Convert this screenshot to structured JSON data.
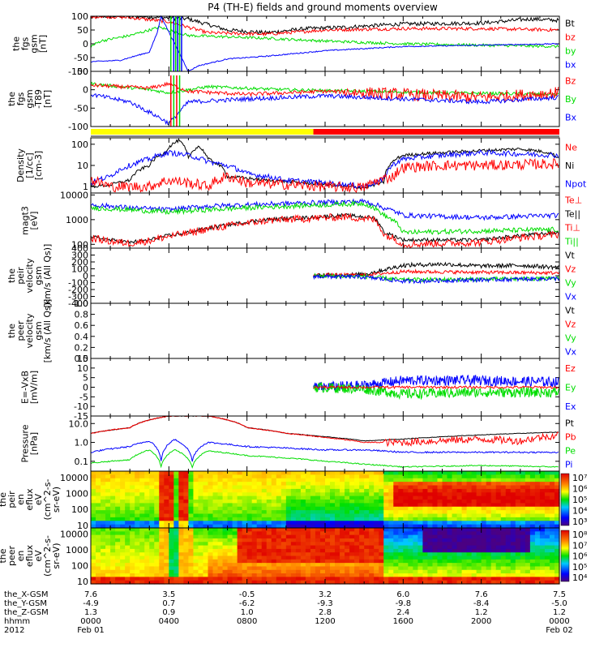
{
  "title": "P4 (TH-E) fields and ground moments overview",
  "colors": {
    "black": "#000000",
    "red": "#ff0000",
    "green": "#00dd00",
    "blue": "#0000ff",
    "yellow": "#ffff00"
  },
  "chart_data": [
    {
      "type": "line",
      "ylabel": [
        "the",
        "fgs",
        "gsm",
        "[nT]"
      ],
      "ylim": [
        -100,
        100
      ],
      "yticks": [
        "100",
        "50",
        "0",
        "-50",
        "-100"
      ],
      "legend": [
        {
          "name": "Bt",
          "color": "black"
        },
        {
          "name": "bz",
          "color": "red"
        },
        {
          "name": "by",
          "color": "green"
        },
        {
          "name": "bx",
          "color": "blue"
        }
      ]
    },
    {
      "type": "line",
      "ylabel": [
        "the",
        "fgs",
        "gsm",
        "-T89",
        "[nT]"
      ],
      "ylim": [
        -120,
        60
      ],
      "yticks": [
        "50",
        "0",
        "-50",
        "-100"
      ],
      "legend": [
        {
          "name": "Bz",
          "color": "red"
        },
        {
          "name": "By",
          "color": "green"
        },
        {
          "name": "Bx",
          "color": "blue"
        }
      ]
    },
    {
      "type": "line",
      "ylabel": [
        "Density",
        "[1/cc]",
        "[cm-3]"
      ],
      "scale": "log",
      "ylim": [
        0.5,
        200
      ],
      "yticks": [
        "100",
        "10",
        "1"
      ],
      "legend": [
        {
          "name": "Ne",
          "color": "red"
        },
        {
          "name": "Ni",
          "color": "black"
        },
        {
          "name": "Npot",
          "color": "blue"
        }
      ]
    },
    {
      "type": "line",
      "ylabel": [
        "magt3",
        "[eV]"
      ],
      "scale": "log",
      "ylim": [
        70,
        12000
      ],
      "yticks": [
        "10000",
        "1000",
        "100"
      ],
      "legend": [
        {
          "name": "Te⊥",
          "color": "red"
        },
        {
          "name": "Te||",
          "color": "black"
        },
        {
          "name": "Ti⊥",
          "color": "red"
        },
        {
          "name": "Ti||",
          "color": "green"
        }
      ]
    },
    {
      "type": "line",
      "ylabel": [
        "the",
        "peir",
        "velocity",
        "gsm",
        "[km/s (All Qs)]"
      ],
      "ylim": [
        -400,
        400
      ],
      "yticks": [
        "400",
        "300",
        "200",
        "100",
        "0",
        "-100",
        "-200",
        "-300",
        "-400"
      ],
      "legend": [
        {
          "name": "Vt",
          "color": "black"
        },
        {
          "name": "Vz",
          "color": "red"
        },
        {
          "name": "Vy",
          "color": "green"
        },
        {
          "name": "Vx",
          "color": "blue"
        }
      ]
    },
    {
      "type": "line",
      "ylabel": [
        "the",
        "peer",
        "velocity",
        "gsm",
        "[km/s (All Qs)]"
      ],
      "ylim": [
        0,
        1
      ],
      "yticks": [
        "1.0",
        "0.8",
        "0.6",
        "0.4",
        "0.2",
        "0.0"
      ],
      "legend": [
        {
          "name": "Vt",
          "color": "black"
        },
        {
          "name": "Vz",
          "color": "red"
        },
        {
          "name": "Vy",
          "color": "green"
        },
        {
          "name": "Vx",
          "color": "blue"
        }
      ]
    },
    {
      "type": "line",
      "ylabel": [
        "E=-VxB",
        "[mV/m]"
      ],
      "ylim": [
        -17,
        17
      ],
      "yticks": [
        "15",
        "10",
        "5",
        "0",
        "-5",
        "-10",
        "-15"
      ],
      "legend": [
        {
          "name": "Ez",
          "color": "red"
        },
        {
          "name": "Ey",
          "color": "green"
        },
        {
          "name": "Ex",
          "color": "blue"
        }
      ]
    },
    {
      "type": "line",
      "ylabel": [
        "Pressure",
        "[nPa]"
      ],
      "scale": "log",
      "ylim": [
        0.03,
        25
      ],
      "yticks": [
        "10.0",
        "1.0",
        "0.1"
      ],
      "legend": [
        {
          "name": "Pt",
          "color": "black"
        },
        {
          "name": "Pb",
          "color": "red"
        },
        {
          "name": "Pe",
          "color": "green"
        },
        {
          "name": "Pi",
          "color": "blue"
        }
      ]
    },
    {
      "type": "heatmap",
      "ylabel": [
        "the",
        "peir",
        "en",
        "eflux",
        "eV",
        "(cm^2-s-",
        "sr-eV)"
      ],
      "scale": "log",
      "ylim": [
        7,
        25000
      ],
      "yticks": [
        "10000",
        "1000",
        "100",
        "10"
      ],
      "colorbar_ticks": [
        "10⁷",
        "10⁶",
        "10⁵",
        "10⁴",
        "10³"
      ]
    },
    {
      "type": "heatmap",
      "ylabel": [
        "the",
        "peer",
        "en",
        "eflux",
        "eV",
        "(cm^2-s-",
        "sr-eV)"
      ],
      "scale": "log",
      "ylim": [
        7,
        25000
      ],
      "yticks": [
        "10000",
        "1000",
        "100",
        "10"
      ],
      "colorbar_ticks": [
        "10⁸",
        "10⁷",
        "10⁶",
        "10⁵",
        "10⁴"
      ]
    }
  ],
  "xaxis": {
    "rows": [
      {
        "label": "the_X-GSM",
        "values": [
          "7.6",
          "3.5",
          "-0.5",
          "3.2",
          "6.0",
          "7.6",
          "7.5"
        ]
      },
      {
        "label": "the_Y-GSM",
        "values": [
          "-4.9",
          "0.7",
          "-6.2",
          "-9.3",
          "-9.8",
          "-8.4",
          "-5.0"
        ]
      },
      {
        "label": "the_Z-GSM",
        "values": [
          "1.3",
          "0.9",
          "1.0",
          "2.8",
          "2.4",
          "1.2",
          "1.2"
        ]
      },
      {
        "label": "hhmm",
        "values": [
          "0000",
          "0400",
          "0800",
          "1200",
          "1600",
          "2000",
          "0000"
        ]
      }
    ],
    "year": "2012",
    "date_start": "Feb 01",
    "date_end": "Feb 02",
    "hours": [
      0,
      4,
      8,
      12,
      16,
      20,
      24
    ]
  }
}
